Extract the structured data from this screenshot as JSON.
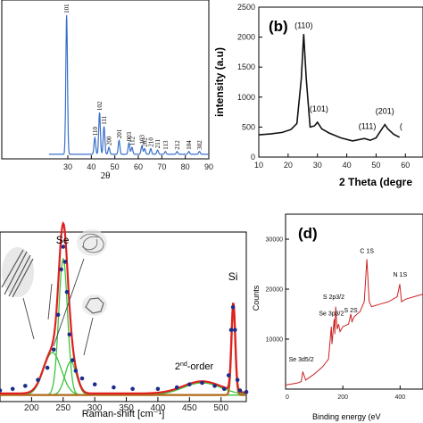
{
  "chart_data": [
    {
      "type": "line",
      "title": "",
      "xlabel": "2θ",
      "ylabel": "",
      "xlim": [
        0,
        90
      ],
      "xticks": [
        30,
        40,
        50,
        60,
        70,
        80,
        90
      ],
      "color": "#3a6fc8",
      "peaks": [
        {
          "label": "101",
          "x": 29.5,
          "h": 1.0
        },
        {
          "label": "102",
          "x": 43.5,
          "h": 0.3
        },
        {
          "label": "110",
          "x": 41.5,
          "h": 0.12
        },
        {
          "label": "111",
          "x": 45.4,
          "h": 0.2
        },
        {
          "label": "200",
          "x": 47.5,
          "h": 0.05
        },
        {
          "label": "201",
          "x": 51.8,
          "h": 0.1
        },
        {
          "label": "003",
          "x": 56.0,
          "h": 0.08
        },
        {
          "label": "112",
          "x": 57.3,
          "h": 0.05
        },
        {
          "label": "103",
          "x": 61.5,
          "h": 0.06
        },
        {
          "label": "202",
          "x": 62.7,
          "h": 0.04
        },
        {
          "label": "210",
          "x": 65.3,
          "h": 0.04
        },
        {
          "label": "211",
          "x": 68.2,
          "h": 0.03
        },
        {
          "label": "113",
          "x": 71.5,
          "h": 0.02
        },
        {
          "label": "212",
          "x": 76.5,
          "h": 0.02
        },
        {
          "label": "104",
          "x": 81.5,
          "h": 0.02
        },
        {
          "label": "302",
          "x": 86.0,
          "h": 0.02
        }
      ]
    },
    {
      "type": "line",
      "panel_label": "(b)",
      "title": "",
      "xlabel": "2 Theta (degre",
      "ylabel": "intensity (a.u)",
      "xlim": [
        10,
        80
      ],
      "ylim": [
        0,
        2500
      ],
      "xticks": [
        10,
        20,
        30,
        40,
        50,
        60
      ],
      "yticks": [
        0,
        500,
        1000,
        1500,
        2000,
        2500
      ],
      "color": "#111111",
      "x": [
        10,
        14,
        18,
        21,
        23,
        24.5,
        25.3,
        26.2,
        27.5,
        29,
        30,
        31.5,
        34,
        38,
        42,
        46,
        48,
        50,
        52,
        53,
        54,
        56,
        58
      ],
      "y": [
        370,
        385,
        410,
        460,
        560,
        1300,
        2050,
        1300,
        500,
        520,
        580,
        470,
        400,
        320,
        270,
        310,
        280,
        320,
        470,
        540,
        470,
        380,
        330
      ],
      "annotations": [
        {
          "text": "(110)",
          "x": 25.3,
          "y": 2150
        },
        {
          "text": "(101)",
          "x": 30.5,
          "y": 760
        },
        {
          "text": "(111)",
          "x": 47,
          "y": 470
        },
        {
          "text": "(201)",
          "x": 53,
          "y": 720
        },
        {
          "text": "(",
          "x": 58.5,
          "y": 470
        }
      ]
    },
    {
      "type": "line",
      "title": "",
      "xlabel": "Raman-shift [cm⁻¹]",
      "ylabel": "",
      "xlim": [
        150,
        540
      ],
      "xticks": [
        200,
        250,
        300,
        350,
        400,
        450,
        500
      ],
      "x": [
        150,
        170,
        190,
        210,
        225,
        235,
        242,
        247,
        250,
        253,
        256,
        260,
        265,
        270,
        280,
        300,
        330,
        360,
        400,
        430,
        450,
        470,
        490,
        505,
        512,
        516,
        519,
        522,
        526,
        530,
        540
      ],
      "y": [
        0.05,
        0.06,
        0.08,
        0.12,
        0.2,
        0.32,
        0.55,
        0.85,
        1.0,
        0.9,
        0.7,
        0.42,
        0.25,
        0.18,
        0.13,
        0.09,
        0.07,
        0.06,
        0.06,
        0.07,
        0.09,
        0.1,
        0.08,
        0.06,
        0.15,
        0.45,
        0.6,
        0.45,
        0.12,
        0.05,
        0.04
      ],
      "fit_peaks": [
        {
          "center": 233,
          "height": 0.28,
          "width": 14
        },
        {
          "center": 250,
          "height": 0.9,
          "width": 7
        },
        {
          "center": 262,
          "height": 0.22,
          "width": 9
        },
        {
          "center": 470,
          "height": 0.08,
          "width": 30
        }
      ],
      "si_peak": {
        "center": 519.5,
        "height": 0.58,
        "width": 3
      },
      "annotations": [
        {
          "text": "Se",
          "x": 249,
          "y": 1.02
        },
        {
          "text": "Si",
          "x": 519,
          "y": 0.78
        },
        {
          "text": "2nd-order",
          "x": 455,
          "y": 0.2
        }
      ]
    },
    {
      "type": "line",
      "panel_label": "(d)",
      "title": "",
      "xlabel": "Binding energy (eV",
      "ylabel": "Counts",
      "xlim": [
        0,
        480
      ],
      "ylim": [
        0,
        35000
      ],
      "xticks": [
        0,
        200,
        400
      ],
      "yticks": [
        10000,
        20000,
        30000
      ],
      "color": "#cc2222",
      "x": [
        0,
        20,
        40,
        55,
        60,
        70,
        100,
        130,
        150,
        160,
        162,
        170,
        172,
        175,
        180,
        185,
        190,
        200,
        220,
        228,
        232,
        240,
        260,
        275,
        284,
        292,
        300,
        330,
        360,
        390,
        399,
        405,
        420,
        450,
        480
      ],
      "y": [
        800,
        1000,
        1200,
        1500,
        3500,
        1800,
        3000,
        4500,
        6000,
        12500,
        9000,
        14000,
        11000,
        16500,
        12000,
        13000,
        11500,
        12500,
        13000,
        15000,
        13500,
        14500,
        15500,
        17500,
        26000,
        17500,
        16500,
        17000,
        17500,
        18500,
        21000,
        17500,
        18000,
        18500,
        19000
      ],
      "annotations": [
        {
          "text": "Se 3d5/2",
          "x": 55,
          "y": 5500
        },
        {
          "text": "Se 3p3/2",
          "x": 160,
          "y": 14700
        },
        {
          "text": "S 2p3/2",
          "x": 168,
          "y": 18000
        },
        {
          "text": "S 2S",
          "x": 228,
          "y": 15400
        },
        {
          "text": "C 1S",
          "x": 284,
          "y": 27200
        },
        {
          "text": "N 1S",
          "x": 400,
          "y": 22500
        }
      ]
    }
  ],
  "panel_labels": {
    "b": "(b)",
    "d": "(d)"
  }
}
